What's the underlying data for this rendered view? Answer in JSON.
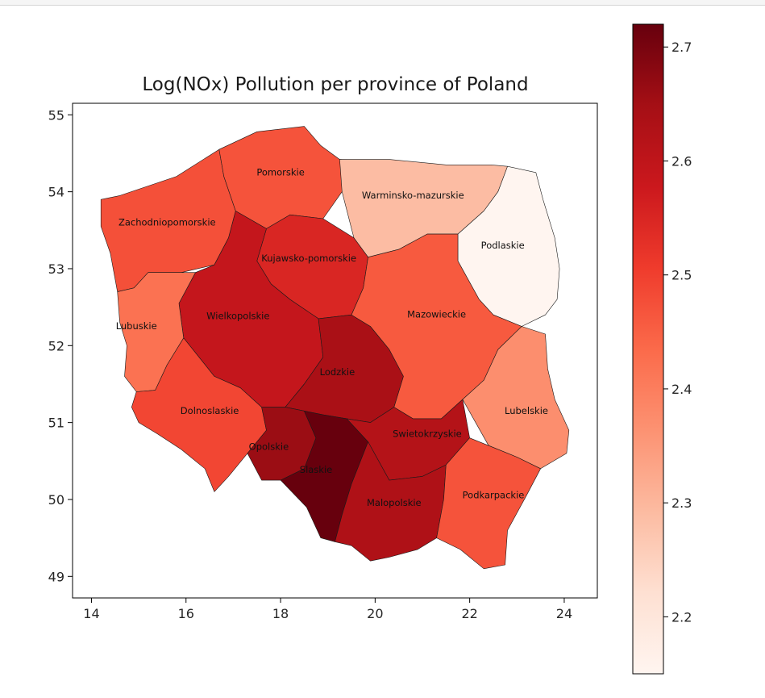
{
  "chart_data": {
    "type": "choropleth",
    "title": "Log(NOx) Pollution per province of Poland",
    "xlabel": "",
    "ylabel": "",
    "xlim": [
      13.6,
      24.7
    ],
    "ylim": [
      48.72,
      55.15
    ],
    "x_ticks": [
      14,
      16,
      18,
      20,
      22,
      24
    ],
    "y_ticks": [
      49,
      50,
      51,
      52,
      53,
      54,
      55
    ],
    "colormap": "Reds",
    "colorbar": {
      "min": 2.15,
      "max": 2.72,
      "ticks": [
        2.2,
        2.3,
        2.4,
        2.5,
        2.6,
        2.7
      ],
      "stops": [
        "#fff5f0",
        "#fee0d2",
        "#fcbba1",
        "#fc9272",
        "#fb6a4a",
        "#ef3b2c",
        "#cb181d",
        "#a50f15",
        "#67000d"
      ]
    },
    "regions": [
      {
        "name": "Zachodniopomorskie",
        "value": 2.475,
        "label_pos": [
          15.6,
          53.6
        ],
        "outline": [
          [
            14.2,
            53.9
          ],
          [
            14.6,
            53.95
          ],
          [
            15.8,
            54.2
          ],
          [
            16.7,
            54.55
          ],
          [
            16.8,
            54.2
          ],
          [
            17.05,
            53.75
          ],
          [
            16.9,
            53.4
          ],
          [
            16.6,
            53.05
          ],
          [
            15.9,
            52.95
          ],
          [
            15.2,
            52.95
          ],
          [
            14.9,
            52.75
          ],
          [
            14.55,
            52.7
          ],
          [
            14.4,
            53.2
          ],
          [
            14.2,
            53.55
          ]
        ]
      },
      {
        "name": "Pomorskie",
        "value": 2.47,
        "label_pos": [
          18.0,
          54.25
        ],
        "outline": [
          [
            16.7,
            54.55
          ],
          [
            17.5,
            54.78
          ],
          [
            18.5,
            54.85
          ],
          [
            18.85,
            54.6
          ],
          [
            19.25,
            54.42
          ],
          [
            19.7,
            54.4
          ],
          [
            19.3,
            54.0
          ],
          [
            18.9,
            53.65
          ],
          [
            18.2,
            53.7
          ],
          [
            17.7,
            53.52
          ],
          [
            17.05,
            53.75
          ],
          [
            16.8,
            54.2
          ]
        ]
      },
      {
        "name": "Warminsko-mazurskie",
        "value": 2.29,
        "label_pos": [
          20.8,
          53.95
        ],
        "outline": [
          [
            19.25,
            54.42
          ],
          [
            20.3,
            54.42
          ],
          [
            21.5,
            54.35
          ],
          [
            22.45,
            54.35
          ],
          [
            22.8,
            54.33
          ],
          [
            22.6,
            54.0
          ],
          [
            22.3,
            53.75
          ],
          [
            21.75,
            53.45
          ],
          [
            21.1,
            53.45
          ],
          [
            20.5,
            53.25
          ],
          [
            19.85,
            53.15
          ],
          [
            19.55,
            53.4
          ],
          [
            19.3,
            54.0
          ]
        ]
      },
      {
        "name": "Podlaskie",
        "value": 2.15,
        "label_pos": [
          22.7,
          53.3
        ],
        "outline": [
          [
            22.8,
            54.33
          ],
          [
            23.4,
            54.25
          ],
          [
            23.55,
            53.9
          ],
          [
            23.8,
            53.4
          ],
          [
            23.9,
            53.0
          ],
          [
            23.85,
            52.6
          ],
          [
            23.6,
            52.4
          ],
          [
            23.1,
            52.25
          ],
          [
            22.5,
            52.4
          ],
          [
            22.2,
            52.6
          ],
          [
            21.75,
            53.1
          ],
          [
            21.75,
            53.45
          ],
          [
            22.3,
            53.75
          ],
          [
            22.6,
            54.0
          ]
        ]
      },
      {
        "name": "Kujawsko-pomorskie",
        "value": 2.55,
        "label_pos": [
          18.6,
          53.13
        ],
        "outline": [
          [
            17.7,
            53.52
          ],
          [
            18.2,
            53.7
          ],
          [
            18.9,
            53.65
          ],
          [
            19.55,
            53.4
          ],
          [
            19.85,
            53.15
          ],
          [
            19.75,
            52.75
          ],
          [
            19.5,
            52.4
          ],
          [
            18.8,
            52.35
          ],
          [
            18.2,
            52.6
          ],
          [
            17.8,
            52.8
          ],
          [
            17.5,
            53.1
          ]
        ]
      },
      {
        "name": "Wielkopolskie",
        "value": 2.59,
        "label_pos": [
          17.1,
          52.38
        ],
        "outline": [
          [
            17.05,
            53.75
          ],
          [
            17.7,
            53.52
          ],
          [
            17.5,
            53.1
          ],
          [
            17.8,
            52.8
          ],
          [
            18.2,
            52.6
          ],
          [
            18.8,
            52.35
          ],
          [
            18.9,
            51.85
          ],
          [
            18.5,
            51.5
          ],
          [
            18.1,
            51.2
          ],
          [
            17.6,
            51.2
          ],
          [
            17.15,
            51.45
          ],
          [
            16.6,
            51.6
          ],
          [
            15.95,
            52.1
          ],
          [
            15.85,
            52.55
          ],
          [
            16.2,
            52.95
          ],
          [
            16.6,
            53.05
          ],
          [
            16.9,
            53.4
          ]
        ]
      },
      {
        "name": "Lubuskie",
        "value": 2.42,
        "label_pos": [
          14.95,
          52.25
        ],
        "outline": [
          [
            14.55,
            52.7
          ],
          [
            14.9,
            52.75
          ],
          [
            15.2,
            52.95
          ],
          [
            15.9,
            52.95
          ],
          [
            16.2,
            52.95
          ],
          [
            15.85,
            52.55
          ],
          [
            15.95,
            52.1
          ],
          [
            15.6,
            51.75
          ],
          [
            15.35,
            51.42
          ],
          [
            14.95,
            51.4
          ],
          [
            14.7,
            51.6
          ],
          [
            14.75,
            52.0
          ],
          [
            14.6,
            52.3
          ]
        ]
      },
      {
        "name": "Dolnoslaskie",
        "value": 2.49,
        "label_pos": [
          16.5,
          51.15
        ],
        "outline": [
          [
            14.95,
            51.4
          ],
          [
            15.35,
            51.42
          ],
          [
            15.6,
            51.75
          ],
          [
            15.95,
            52.1
          ],
          [
            16.6,
            51.6
          ],
          [
            17.15,
            51.45
          ],
          [
            17.6,
            51.2
          ],
          [
            17.7,
            50.9
          ],
          [
            17.3,
            50.6
          ],
          [
            16.9,
            50.3
          ],
          [
            16.6,
            50.1
          ],
          [
            16.4,
            50.4
          ],
          [
            15.9,
            50.65
          ],
          [
            15.4,
            50.85
          ],
          [
            15.0,
            51.0
          ],
          [
            14.85,
            51.2
          ]
        ]
      },
      {
        "name": "Lodzkie",
        "value": 2.64,
        "label_pos": [
          19.2,
          51.65
        ],
        "outline": [
          [
            18.9,
            51.85
          ],
          [
            18.8,
            52.35
          ],
          [
            19.5,
            52.4
          ],
          [
            19.9,
            52.25
          ],
          [
            20.3,
            51.95
          ],
          [
            20.6,
            51.6
          ],
          [
            20.4,
            51.2
          ],
          [
            19.9,
            51.0
          ],
          [
            19.4,
            51.05
          ],
          [
            18.9,
            51.1
          ],
          [
            18.5,
            51.15
          ],
          [
            18.1,
            51.2
          ],
          [
            18.5,
            51.5
          ]
        ]
      },
      {
        "name": "Mazowieckie",
        "value": 2.46,
        "label_pos": [
          21.3,
          52.4
        ],
        "outline": [
          [
            19.85,
            53.15
          ],
          [
            20.5,
            53.25
          ],
          [
            21.1,
            53.45
          ],
          [
            21.75,
            53.45
          ],
          [
            21.75,
            53.1
          ],
          [
            22.2,
            52.6
          ],
          [
            22.5,
            52.4
          ],
          [
            23.1,
            52.25
          ],
          [
            22.6,
            51.95
          ],
          [
            22.3,
            51.55
          ],
          [
            21.85,
            51.3
          ],
          [
            21.4,
            51.05
          ],
          [
            20.8,
            51.05
          ],
          [
            20.4,
            51.2
          ],
          [
            20.6,
            51.6
          ],
          [
            20.3,
            51.95
          ],
          [
            19.9,
            52.25
          ],
          [
            19.5,
            52.4
          ],
          [
            19.75,
            52.75
          ]
        ]
      },
      {
        "name": "Lubelskie",
        "value": 2.37,
        "label_pos": [
          23.2,
          51.15
        ],
        "outline": [
          [
            23.1,
            52.25
          ],
          [
            23.6,
            52.15
          ],
          [
            23.65,
            51.7
          ],
          [
            23.8,
            51.3
          ],
          [
            24.1,
            50.9
          ],
          [
            24.05,
            50.6
          ],
          [
            23.5,
            50.4
          ],
          [
            23.0,
            50.55
          ],
          [
            22.4,
            50.7
          ],
          [
            21.85,
            51.3
          ],
          [
            22.3,
            51.55
          ],
          [
            22.6,
            51.95
          ]
        ]
      },
      {
        "name": "Opolskie",
        "value": 2.66,
        "label_pos": [
          17.75,
          50.68
        ],
        "outline": [
          [
            17.6,
            51.2
          ],
          [
            18.1,
            51.2
          ],
          [
            18.5,
            51.15
          ],
          [
            18.75,
            50.8
          ],
          [
            18.5,
            50.4
          ],
          [
            18.0,
            50.25
          ],
          [
            17.6,
            50.25
          ],
          [
            17.3,
            50.6
          ],
          [
            17.7,
            50.9
          ]
        ]
      },
      {
        "name": "Slaskie",
        "value": 2.72,
        "label_pos": [
          18.75,
          50.38
        ],
        "outline": [
          [
            18.5,
            51.15
          ],
          [
            18.9,
            51.1
          ],
          [
            19.4,
            51.05
          ],
          [
            19.85,
            50.75
          ],
          [
            19.5,
            50.2
          ],
          [
            19.3,
            49.8
          ],
          [
            19.15,
            49.45
          ],
          [
            18.85,
            49.5
          ],
          [
            18.55,
            49.9
          ],
          [
            18.0,
            50.25
          ],
          [
            18.5,
            50.4
          ],
          [
            18.75,
            50.8
          ]
        ]
      },
      {
        "name": "Swietokrzyskie",
        "value": 2.62,
        "label_pos": [
          21.1,
          50.85
        ],
        "outline": [
          [
            19.4,
            51.05
          ],
          [
            19.9,
            51.0
          ],
          [
            20.4,
            51.2
          ],
          [
            20.8,
            51.05
          ],
          [
            21.4,
            51.05
          ],
          [
            21.85,
            51.3
          ],
          [
            22.0,
            50.8
          ],
          [
            21.5,
            50.45
          ],
          [
            21.0,
            50.3
          ],
          [
            20.3,
            50.25
          ],
          [
            19.85,
            50.75
          ]
        ]
      },
      {
        "name": "Malopolskie",
        "value": 2.63,
        "label_pos": [
          20.4,
          49.95
        ],
        "outline": [
          [
            19.85,
            50.75
          ],
          [
            20.3,
            50.25
          ],
          [
            21.0,
            50.3
          ],
          [
            21.5,
            50.45
          ],
          [
            21.45,
            50.0
          ],
          [
            21.3,
            49.5
          ],
          [
            20.9,
            49.35
          ],
          [
            20.3,
            49.25
          ],
          [
            19.9,
            49.2
          ],
          [
            19.5,
            49.4
          ],
          [
            19.15,
            49.45
          ],
          [
            19.3,
            49.8
          ],
          [
            19.5,
            50.2
          ]
        ]
      },
      {
        "name": "Podkarpackie",
        "value": 2.47,
        "label_pos": [
          22.5,
          50.05
        ],
        "outline": [
          [
            21.5,
            50.45
          ],
          [
            22.0,
            50.8
          ],
          [
            22.4,
            50.7
          ],
          [
            23.0,
            50.55
          ],
          [
            23.5,
            50.4
          ],
          [
            23.2,
            50.05
          ],
          [
            22.8,
            49.6
          ],
          [
            22.75,
            49.15
          ],
          [
            22.3,
            49.1
          ],
          [
            21.8,
            49.35
          ],
          [
            21.3,
            49.5
          ],
          [
            21.45,
            50.0
          ]
        ]
      }
    ]
  }
}
